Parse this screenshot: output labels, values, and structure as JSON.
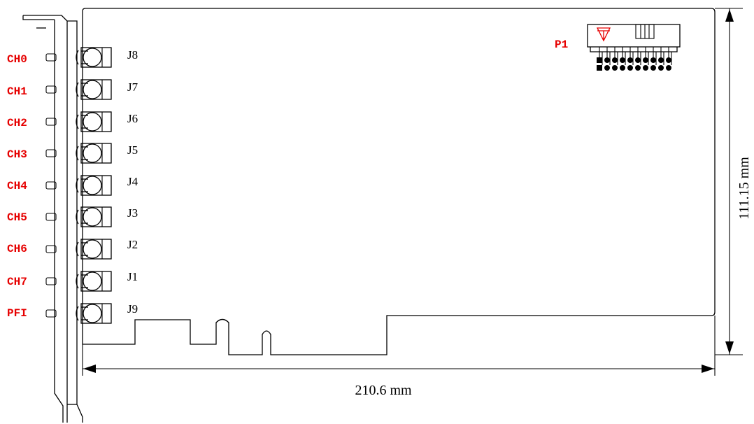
{
  "channels": [
    {
      "ch_label": "CH0",
      "jack_label": "J8"
    },
    {
      "ch_label": "CH1",
      "jack_label": "J7"
    },
    {
      "ch_label": "CH2",
      "jack_label": "J6"
    },
    {
      "ch_label": "CH3",
      "jack_label": "J5"
    },
    {
      "ch_label": "CH4",
      "jack_label": "J4"
    },
    {
      "ch_label": "CH5",
      "jack_label": "J3"
    },
    {
      "ch_label": "CH6",
      "jack_label": "J2"
    },
    {
      "ch_label": "CH7",
      "jack_label": "J1"
    },
    {
      "ch_label": "PFI",
      "jack_label": "J9"
    }
  ],
  "connector": {
    "label": "P1"
  },
  "dimensions": {
    "width": "210.6 mm",
    "height": "111.15 mm"
  },
  "colors": {
    "label_red": "#e60000",
    "line": "#000000"
  }
}
